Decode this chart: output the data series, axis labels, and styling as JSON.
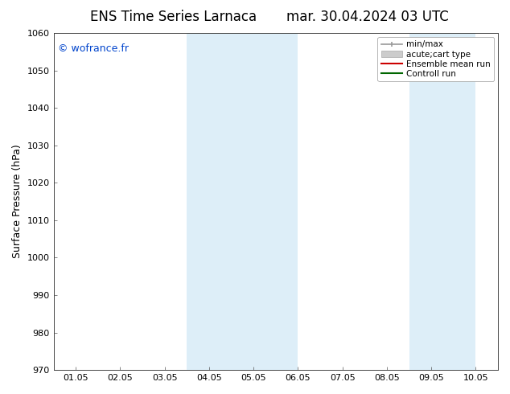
{
  "title_left": "ENS Time Series Larnaca",
  "title_right": "mar. 30.04.2024 03 UTC",
  "ylabel": "Surface Pressure (hPa)",
  "ylim": [
    970,
    1060
  ],
  "yticks": [
    970,
    980,
    990,
    1000,
    1010,
    1020,
    1030,
    1040,
    1050,
    1060
  ],
  "xtick_labels": [
    "01.05",
    "02.05",
    "03.05",
    "04.05",
    "05.05",
    "06.05",
    "07.05",
    "08.05",
    "09.05",
    "10.05"
  ],
  "shade_bands": [
    {
      "xmin": 3.0,
      "xmax": 4.0,
      "color": "#ddeef8"
    },
    {
      "xmin": 4.0,
      "xmax": 5.0,
      "color": "#ddeef8"
    },
    {
      "xmin": 8.0,
      "xmax": 9.0,
      "color": "#ddeef8"
    }
  ],
  "copyright_text": "© wofrance.fr",
  "copyright_color": "#0044cc",
  "legend_items": [
    {
      "label": "min/max",
      "color": "#999999",
      "type": "hline_caps"
    },
    {
      "label": "acute;cart type",
      "color": "#cccccc",
      "type": "fill"
    },
    {
      "label": "Ensemble mean run",
      "color": "#cc0000",
      "type": "line"
    },
    {
      "label": "Controll run",
      "color": "#006600",
      "type": "line"
    }
  ],
  "bg_color": "#ffffff",
  "plot_bg_color": "#ffffff",
  "title_fontsize": 12,
  "tick_fontsize": 8,
  "ylabel_fontsize": 9,
  "legend_fontsize": 7.5,
  "copyright_fontsize": 9
}
